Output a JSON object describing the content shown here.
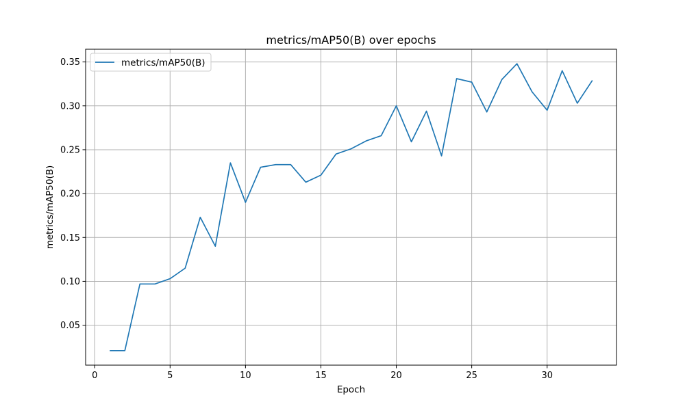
{
  "chart_data": {
    "type": "line",
    "title": "metrics/mAP50(B) over epochs",
    "xlabel": "Epoch",
    "ylabel": "metrics/mAP50(B)",
    "xlim": [
      -0.6,
      34.6
    ],
    "ylim": [
      0.0045,
      0.3645
    ],
    "xticks": [
      0,
      5,
      10,
      15,
      20,
      25,
      30
    ],
    "yticks": [
      0.05,
      0.1,
      0.15,
      0.2,
      0.25,
      0.3,
      0.35
    ],
    "xtick_labels": [
      "0",
      "5",
      "10",
      "15",
      "20",
      "25",
      "30"
    ],
    "ytick_labels": [
      "0.05",
      "0.10",
      "0.15",
      "0.20",
      "0.25",
      "0.30",
      "0.35"
    ],
    "grid": true,
    "legend_position": "top-left",
    "series": [
      {
        "name": "metrics/mAP50(B)",
        "color": "#1f77b4",
        "x": [
          1,
          2,
          3,
          4,
          5,
          6,
          7,
          8,
          9,
          10,
          11,
          12,
          13,
          14,
          15,
          16,
          17,
          18,
          19,
          20,
          21,
          22,
          23,
          24,
          25,
          26,
          27,
          28,
          29,
          30,
          31,
          32,
          33
        ],
        "y": [
          0.021,
          0.021,
          0.097,
          0.097,
          0.103,
          0.115,
          0.173,
          0.14,
          0.235,
          0.19,
          0.23,
          0.233,
          0.233,
          0.213,
          0.221,
          0.245,
          0.251,
          0.26,
          0.266,
          0.3,
          0.259,
          0.294,
          0.243,
          0.331,
          0.327,
          0.293,
          0.33,
          0.348,
          0.316,
          0.295,
          0.34,
          0.303,
          0.329
        ]
      }
    ]
  }
}
